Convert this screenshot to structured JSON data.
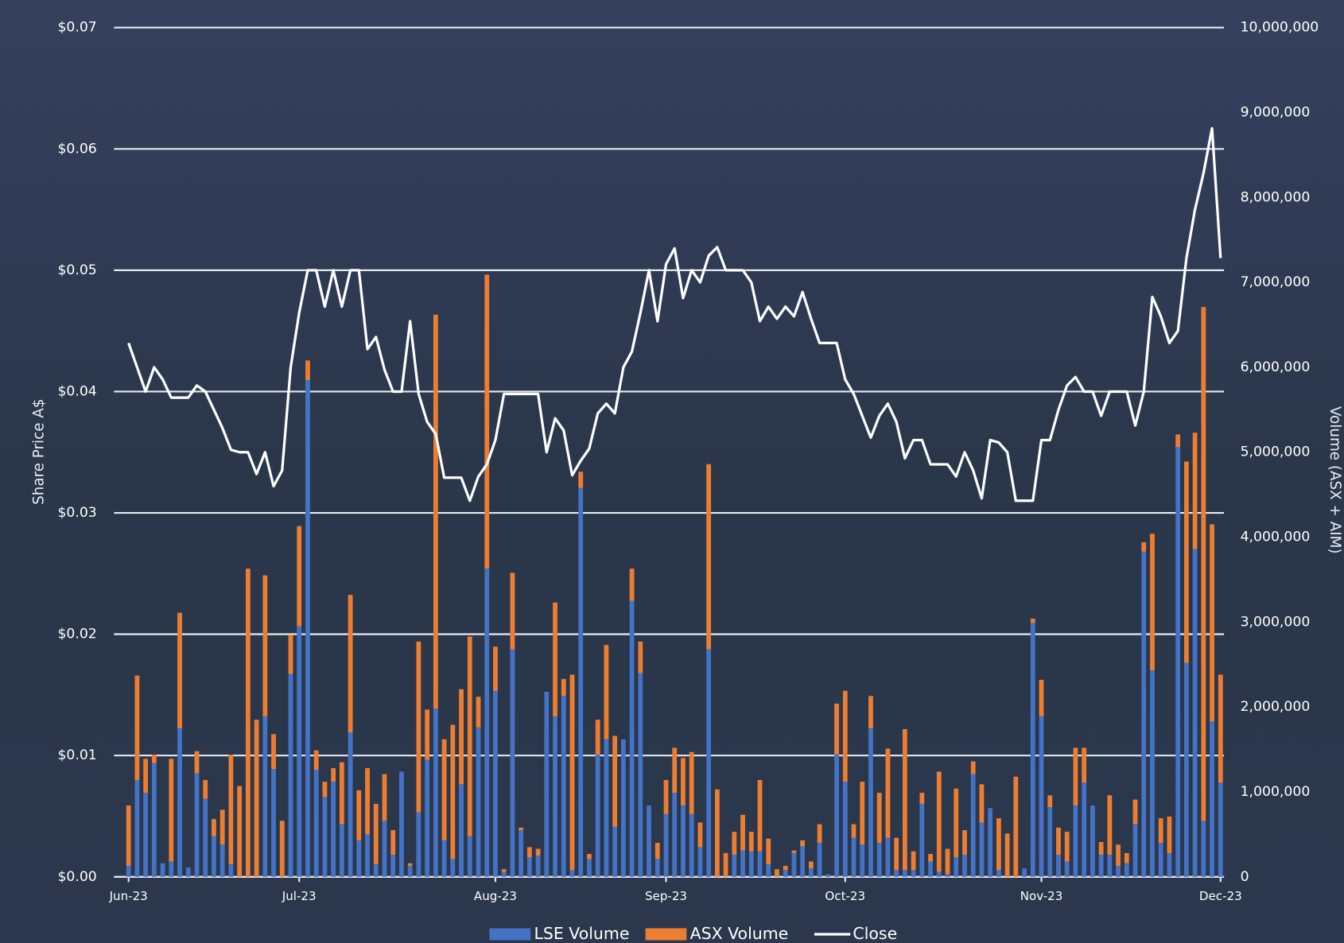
{
  "chart_data": {
    "type": "bar",
    "stacked": true,
    "y_label": "Share Price A$",
    "y2_label": "Volume (ASX + AIM)",
    "legend": "bottom",
    "grid": true,
    "categories": [
      "Jun-23",
      null,
      null,
      null,
      null,
      null,
      null,
      null,
      null,
      null,
      null,
      null,
      null,
      null,
      null,
      null,
      null,
      null,
      null,
      null,
      "Jul-23",
      null,
      null,
      null,
      null,
      null,
      null,
      null,
      null,
      null,
      null,
      null,
      null,
      null,
      null,
      null,
      null,
      null,
      null,
      null,
      null,
      null,
      null,
      "Aug-23",
      null,
      null,
      null,
      null,
      null,
      null,
      null,
      null,
      null,
      null,
      null,
      null,
      null,
      null,
      null,
      null,
      null,
      null,
      null,
      "Sep-23",
      null,
      null,
      null,
      null,
      null,
      null,
      null,
      null,
      null,
      null,
      null,
      null,
      null,
      null,
      null,
      null,
      null,
      null,
      null,
      null,
      "Oct-23",
      null,
      null,
      null,
      null,
      null,
      null,
      null,
      null,
      null,
      null,
      null,
      null,
      null,
      null,
      null,
      null,
      null,
      null,
      null,
      null,
      null,
      null,
      "Nov-23",
      null,
      null,
      null,
      null,
      null,
      null,
      null,
      null,
      null,
      null,
      null,
      null,
      null,
      null,
      null,
      null,
      null,
      null,
      null,
      null,
      "Dec-23"
    ],
    "ylim": [
      0,
      0.07
    ],
    "yticks": [
      {
        "value": 0,
        "label": "$0.00"
      },
      {
        "value": 0.01,
        "label": "$0.01"
      },
      {
        "value": 0.02,
        "label": "$0.02"
      },
      {
        "value": 0.03,
        "label": "$0.03"
      },
      {
        "value": 0.04,
        "label": "$0.04"
      },
      {
        "value": 0.05,
        "label": "$0.05"
      },
      {
        "value": 0.06,
        "label": "$0.06"
      },
      {
        "value": 0.07,
        "label": "$0.07"
      }
    ],
    "y2lim": [
      0,
      10000000
    ],
    "y2ticks": [
      0,
      {
        "value": 1000000,
        "label": "1,000,000"
      },
      {
        "value": 2000000,
        "label": "2,000,000"
      },
      {
        "value": 3000000,
        "label": "3,000,000"
      },
      {
        "value": 4000000,
        "label": "4,000,000"
      },
      {
        "value": 5000000,
        "label": "5,000,000"
      },
      {
        "value": 6000000,
        "label": "6,000,000"
      },
      {
        "value": 7000000,
        "label": "7,000,000"
      },
      {
        "value": 8000000,
        "label": "8,000,000"
      },
      {
        "value": 9000000,
        "label": "9,000,000"
      },
      {
        "value": 10000000,
        "label": "10,000,000"
      }
    ],
    "series": [
      {
        "name": "LSE Volume",
        "type": "bar",
        "axis": "y2",
        "color": "#4472c4",
        "values": [
          130000,
          1140000,
          990000,
          1340000,
          160000,
          180000,
          1750000,
          110000,
          1220000,
          920000,
          480000,
          380000,
          150000,
          0,
          0,
          0,
          1890000,
          1270000,
          0,
          2390000,
          2950000,
          5850000,
          1260000,
          940000,
          1120000,
          620000,
          1700000,
          430000,
          500000,
          150000,
          660000,
          260000,
          1240000,
          130000,
          760000,
          1380000,
          1980000,
          430000,
          210000,
          1090000,
          480000,
          1760000,
          3630000,
          2190000,
          60000,
          2680000,
          550000,
          230000,
          250000,
          2180000,
          1890000,
          2130000,
          80000,
          4580000,
          210000,
          1440000,
          1620000,
          590000,
          1620000,
          3250000,
          2400000,
          840000,
          210000,
          740000,
          990000,
          840000,
          740000,
          350000,
          2680000,
          0,
          0,
          260000,
          310000,
          300000,
          300000,
          150000,
          0,
          80000,
          280000,
          360000,
          100000,
          400000,
          30000,
          1440000,
          1120000,
          460000,
          380000,
          1750000,
          400000,
          460000,
          80000,
          80000,
          80000,
          860000,
          180000,
          60000,
          30000,
          230000,
          260000,
          1210000,
          640000,
          810000,
          80000,
          0,
          0,
          100000,
          2990000,
          1890000,
          820000,
          260000,
          180000,
          840000,
          1110000,
          840000,
          260000,
          260000,
          130000,
          160000,
          620000,
          3830000,
          2430000,
          400000,
          280000,
          5060000,
          2520000,
          3860000,
          660000,
          1830000,
          1110000
        ]
      },
      {
        "name": "ASX Volume",
        "type": "bar",
        "axis": "y2",
        "color": "#ed7d31",
        "values": [
          710000,
          1230000,
          400000,
          100000,
          0,
          1210000,
          1360000,
          0,
          260000,
          220000,
          200000,
          410000,
          1290000,
          1070000,
          3630000,
          1850000,
          1660000,
          410000,
          660000,
          460000,
          1180000,
          230000,
          230000,
          180000,
          160000,
          730000,
          1620000,
          590000,
          780000,
          710000,
          550000,
          290000,
          0,
          30000,
          2010000,
          590000,
          4640000,
          1190000,
          1580000,
          1120000,
          2350000,
          360000,
          3460000,
          520000,
          30000,
          900000,
          30000,
          120000,
          80000,
          0,
          1340000,
          200000,
          2300000,
          190000,
          60000,
          410000,
          1110000,
          1070000,
          0,
          380000,
          370000,
          0,
          190000,
          400000,
          530000,
          560000,
          730000,
          290000,
          2180000,
          1030000,
          280000,
          270000,
          420000,
          230000,
          840000,
          300000,
          90000,
          50000,
          30000,
          70000,
          80000,
          220000,
          0,
          600000,
          1070000,
          160000,
          740000,
          380000,
          590000,
          1050000,
          380000,
          1660000,
          220000,
          130000,
          90000,
          1180000,
          300000,
          810000,
          290000,
          150000,
          450000,
          0,
          610000,
          510000,
          1180000,
          0,
          50000,
          430000,
          140000,
          320000,
          350000,
          680000,
          410000,
          0,
          150000,
          700000,
          250000,
          120000,
          290000,
          110000,
          1610000,
          290000,
          430000,
          150000,
          2370000,
          1370000,
          6050000,
          2320000,
          1270000
        ]
      },
      {
        "name": "Close",
        "type": "line",
        "axis": "y",
        "color": "#ffffff",
        "values": [
          0.044,
          0.042,
          0.04,
          0.042,
          0.041,
          0.0395,
          0.0395,
          0.0395,
          0.0405,
          0.04,
          0.0385,
          0.037,
          0.0352,
          0.035,
          0.035,
          0.0332,
          0.035,
          0.0322,
          0.0335,
          0.042,
          0.0465,
          0.05,
          0.05,
          0.047,
          0.05,
          0.047,
          0.05,
          0.05,
          0.0435,
          0.0445,
          0.0418,
          0.04,
          0.04,
          0.0458,
          0.0398,
          0.0375,
          0.0365,
          0.0329,
          0.0329,
          0.0329,
          0.031,
          0.033,
          0.034,
          0.036,
          0.0398,
          0.0398,
          0.0398,
          0.0398,
          0.0398,
          0.035,
          0.0378,
          0.0368,
          0.0331,
          0.0343,
          0.0353,
          0.0382,
          0.039,
          0.0382,
          0.042,
          0.0433,
          0.0465,
          0.05,
          0.0458,
          0.0505,
          0.0518,
          0.0477,
          0.05,
          0.049,
          0.0512,
          0.0519,
          0.05,
          0.05,
          0.05,
          0.049,
          0.0458,
          0.047,
          0.046,
          0.047,
          0.0462,
          0.0482,
          0.046,
          0.044,
          0.044,
          0.044,
          0.041,
          0.0398,
          0.038,
          0.0362,
          0.038,
          0.039,
          0.0375,
          0.0345,
          0.036,
          0.036,
          0.034,
          0.034,
          0.034,
          0.033,
          0.035,
          0.0335,
          0.0312,
          0.036,
          0.0358,
          0.035,
          0.031,
          0.031,
          0.031,
          0.036,
          0.036,
          0.0385,
          0.0405,
          0.0412,
          0.04,
          0.04,
          0.038,
          0.04,
          0.04,
          0.04,
          0.0372,
          0.04,
          0.0478,
          0.0462,
          0.044,
          0.045,
          0.051,
          0.055,
          0.058,
          0.0617,
          0.051
        ]
      }
    ]
  }
}
